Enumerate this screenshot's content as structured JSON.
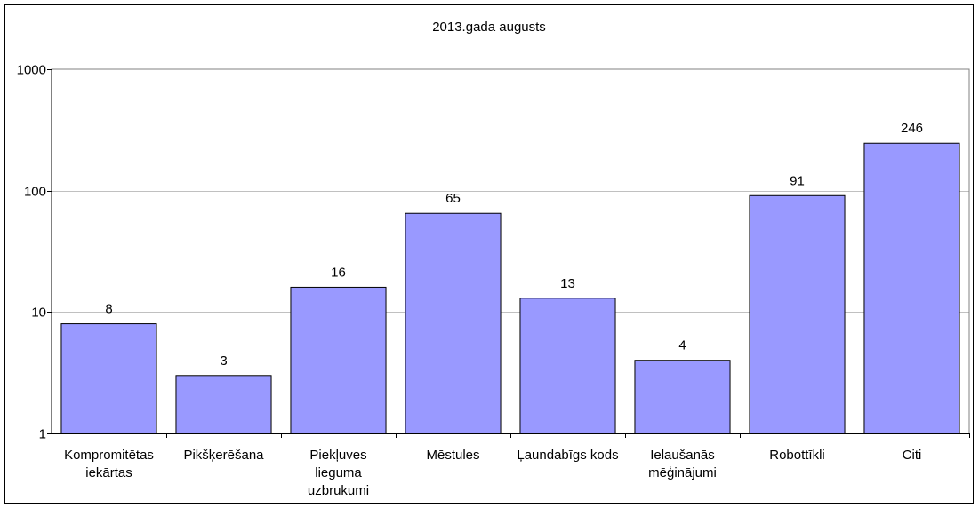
{
  "chart_data": {
    "type": "bar",
    "title": "2013.gada augusts",
    "xlabel": "",
    "ylabel": "",
    "yscale": "log",
    "ylim": [
      1,
      1000
    ],
    "yticks": [
      "1",
      "10",
      "100",
      "1000"
    ],
    "grid": true,
    "legend": "none",
    "bar_color": "#9999ff",
    "categories": [
      [
        "Kompromitētas",
        "iekārtas"
      ],
      [
        "Pikšķerēšana"
      ],
      [
        "Piekļuves",
        "lieguma",
        "uzbrukumi"
      ],
      [
        "Mēstules"
      ],
      [
        "Ļaundabīgs kods"
      ],
      [
        "Ielaušanās",
        "mēģinājumi"
      ],
      [
        "Robottīkli"
      ],
      [
        "Citi"
      ]
    ],
    "values": [
      8,
      3,
      16,
      65,
      13,
      4,
      91,
      246
    ],
    "value_labels": [
      "8",
      "3",
      "16",
      "65",
      "13",
      "4",
      "91",
      "246"
    ]
  }
}
